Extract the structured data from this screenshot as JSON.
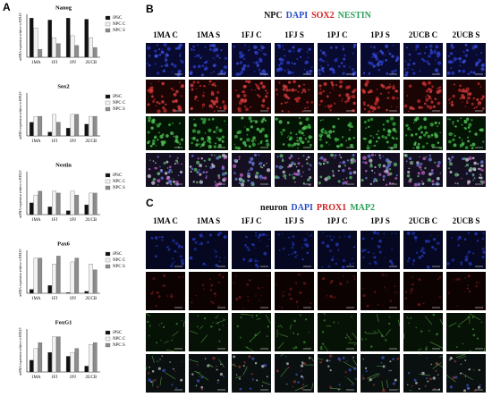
{
  "panel_labels": [
    "A",
    "B",
    "C"
  ],
  "chart_data": [
    {
      "type": "bar",
      "title": "Nanog",
      "y_label": "mRNA expression relative to RPL19",
      "categories": [
        "1MA",
        "1FJ",
        "1PJ",
        "2UCB"
      ],
      "ylim": [
        0,
        1.05
      ],
      "series": [
        {
          "name": "iPSC",
          "color": "#111111",
          "values": [
            1.0,
            0.95,
            1.0,
            0.97
          ]
        },
        {
          "name": "NPC C",
          "color": "#f2f2f2",
          "values": [
            0.75,
            0.5,
            0.55,
            0.5
          ]
        },
        {
          "name": "NPC S",
          "color": "#8c8c8c",
          "values": [
            0.2,
            0.35,
            0.3,
            0.25
          ]
        }
      ]
    },
    {
      "type": "bar",
      "title": "Sox2",
      "y_label": "mRNA expression relative to RPL19",
      "categories": [
        "1MA",
        "1FJ",
        "1PJ",
        "2UCB"
      ],
      "ylim": [
        0,
        1.05
      ],
      "series": [
        {
          "name": "iPSC",
          "color": "#111111",
          "values": [
            0.35,
            0.1,
            0.2,
            0.3
          ]
        },
        {
          "name": "NPC C",
          "color": "#f2f2f2",
          "values": [
            0.5,
            0.55,
            0.55,
            0.5
          ]
        },
        {
          "name": "NPC S",
          "color": "#8c8c8c",
          "values": [
            0.5,
            0.35,
            0.55,
            0.5
          ]
        }
      ]
    },
    {
      "type": "bar",
      "title": "Nestin",
      "y_label": "mRNA expression relative to RPL19",
      "categories": [
        "1MA",
        "1FJ",
        "1PJ",
        "2UCB"
      ],
      "ylim": [
        0,
        1.05
      ],
      "series": [
        {
          "name": "iPSC",
          "color": "#111111",
          "values": [
            0.3,
            0.2,
            0.1,
            0.25
          ]
        },
        {
          "name": "NPC C",
          "color": "#f2f2f2",
          "values": [
            0.5,
            0.6,
            0.6,
            0.55
          ]
        },
        {
          "name": "NPC S",
          "color": "#8c8c8c",
          "values": [
            0.6,
            0.55,
            0.5,
            0.55
          ]
        }
      ]
    },
    {
      "type": "bar",
      "title": "Pax6",
      "y_label": "mRNA expression relative to RPL19",
      "categories": [
        "1MA",
        "1FJ",
        "1PJ",
        "2UCB"
      ],
      "ylim": [
        0,
        1.05
      ],
      "series": [
        {
          "name": "iPSC",
          "color": "#111111",
          "values": [
            0.1,
            0.2,
            0.02,
            0.05
          ]
        },
        {
          "name": "NPC C",
          "color": "#f2f2f2",
          "values": [
            0.9,
            0.75,
            0.8,
            0.75
          ]
        },
        {
          "name": "NPC S",
          "color": "#8c8c8c",
          "values": [
            0.9,
            0.95,
            0.9,
            0.6
          ]
        }
      ]
    },
    {
      "type": "bar",
      "title": "FoxG1",
      "y_label": "mRNA expression relative to RPL19",
      "categories": [
        "1MA",
        "1FJ",
        "1PJ",
        "2UCB"
      ],
      "ylim": [
        0,
        1.05
      ],
      "series": [
        {
          "name": "iPSC",
          "color": "#111111",
          "values": [
            0.3,
            0.5,
            0.4,
            0.15
          ]
        },
        {
          "name": "NPC C",
          "color": "#f2f2f2",
          "values": [
            0.6,
            0.9,
            0.5,
            0.7
          ]
        },
        {
          "name": "NPC S",
          "color": "#8c8c8c",
          "values": [
            0.75,
            0.9,
            0.6,
            0.75
          ]
        }
      ]
    }
  ],
  "panel_b": {
    "header": [
      {
        "text": "NPC",
        "color": "#111111"
      },
      {
        "text": "DAPI",
        "color": "#2a4fc9"
      },
      {
        "text": "SOX2",
        "color": "#d02020"
      },
      {
        "text": "NESTIN",
        "color": "#2aa05a"
      }
    ],
    "columns": [
      "1MA C",
      "1MA S",
      "1FJ C",
      "1FJ S",
      "1PJ C",
      "1PJ S",
      "2UCB C",
      "2UCB S"
    ]
  },
  "panel_c": {
    "header": [
      {
        "text": "neuron",
        "color": "#111111"
      },
      {
        "text": "DAPI",
        "color": "#2a4fc9"
      },
      {
        "text": "PROX1",
        "color": "#d02020"
      },
      {
        "text": "MAP2",
        "color": "#2aa05a"
      }
    ],
    "columns": [
      "1MA C",
      "1MA S",
      "1FJ C",
      "1FJ S",
      "1PJ C",
      "1PJ S",
      "2UCB C",
      "2UCB S"
    ]
  }
}
